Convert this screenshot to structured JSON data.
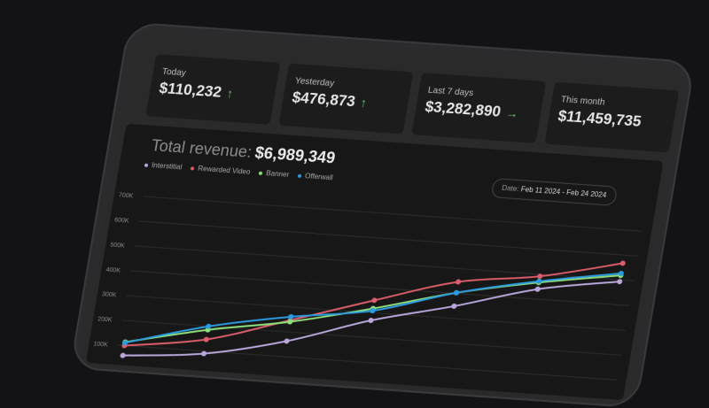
{
  "cards": [
    {
      "label": "Today",
      "value": "$110,232",
      "trend": "up",
      "trend_icon": "↑"
    },
    {
      "label": "Yesterday",
      "value": "$476,873",
      "trend": "up",
      "trend_icon": "↑"
    },
    {
      "label": "Last 7 days",
      "value": "$3,282,890",
      "trend": "flat",
      "trend_icon": "→"
    },
    {
      "label": "This month",
      "value": "$11,459,735"
    }
  ],
  "chart_header": {
    "title": "Total revenue:",
    "total": "$6,989,349",
    "date_label": "Date:",
    "date_range": "Feb 11 2024 - Feb 24 2024"
  },
  "chart_data": {
    "type": "line",
    "ylim": [
      0,
      700000
    ],
    "yticks": [
      "100K",
      "200K",
      "300K",
      "400K",
      "500K",
      "600K",
      "700K"
    ],
    "grid": true,
    "legend": "top-left",
    "series": [
      {
        "name": "Interstitial",
        "color": "#b9a7dc",
        "values": [
          60000,
          90000,
          163000,
          269000,
          349000,
          440000,
          493000
        ]
      },
      {
        "name": "Rewarded Video",
        "color": "#dc5d6b",
        "values": [
          100000,
          147000,
          247000,
          350000,
          447000,
          492000,
          567000
        ]
      },
      {
        "name": "Banner",
        "color": "#8fe07c",
        "values": [
          114000,
          186000,
          241000,
          317000,
          403000,
          467000,
          518000
        ]
      },
      {
        "name": "Offerwall",
        "color": "#2b9be0",
        "values": [
          111000,
          200000,
          261000,
          308000,
          403000,
          472000,
          526000
        ]
      }
    ]
  }
}
